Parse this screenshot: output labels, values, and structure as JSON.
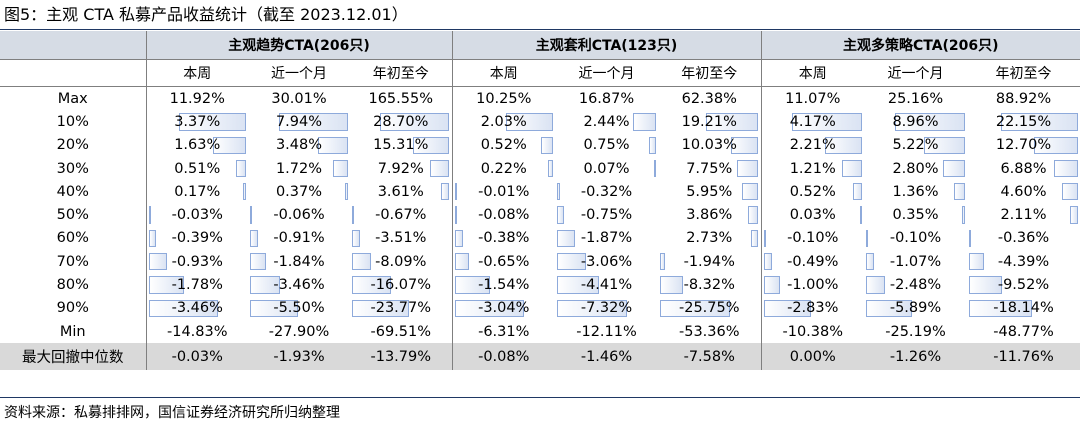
{
  "title": "图5：主观 CTA 私募产品收益统计（截至 2023.12.01）",
  "groups": [
    "主观趋势CTA(206只)",
    "主观套利CTA(123只)",
    "主观多策略CTA(206只)"
  ],
  "subcolumns": [
    "本周",
    "近一个月",
    "年初至今"
  ],
  "rows": [
    {
      "label": "Max",
      "values": [
        "11.92%",
        "30.01%",
        "165.55%",
        "10.25%",
        "16.87%",
        "62.38%",
        "11.07%",
        "25.16%",
        "88.92%"
      ],
      "bars": false
    },
    {
      "label": "10%",
      "values": [
        "3.37%",
        "7.94%",
        "28.70%",
        "2.03%",
        "2.44%",
        "19.21%",
        "4.17%",
        "8.96%",
        "22.15%"
      ],
      "bars": true
    },
    {
      "label": "20%",
      "values": [
        "1.63%",
        "3.48%",
        "15.31%",
        "0.52%",
        "0.75%",
        "10.03%",
        "2.21%",
        "5.22%",
        "12.70%"
      ],
      "bars": true
    },
    {
      "label": "30%",
      "values": [
        "0.51%",
        "1.72%",
        "7.92%",
        "0.22%",
        "0.07%",
        "7.75%",
        "1.21%",
        "2.80%",
        "6.88%"
      ],
      "bars": true
    },
    {
      "label": "40%",
      "values": [
        "0.17%",
        "0.37%",
        "3.61%",
        "-0.01%",
        "-0.32%",
        "5.95%",
        "0.52%",
        "1.36%",
        "4.60%"
      ],
      "bars": true
    },
    {
      "label": "50%",
      "values": [
        "-0.03%",
        "-0.06%",
        "-0.67%",
        "-0.08%",
        "-0.75%",
        "3.86%",
        "0.03%",
        "0.35%",
        "2.11%"
      ],
      "bars": true
    },
    {
      "label": "60%",
      "values": [
        "-0.39%",
        "-0.91%",
        "-3.51%",
        "-0.38%",
        "-1.87%",
        "2.73%",
        "-0.10%",
        "-0.10%",
        "-0.36%"
      ],
      "bars": true
    },
    {
      "label": "70%",
      "values": [
        "-0.93%",
        "-1.84%",
        "-8.09%",
        "-0.65%",
        "-3.06%",
        "-1.94%",
        "-0.49%",
        "-1.07%",
        "-4.39%"
      ],
      "bars": true
    },
    {
      "label": "80%",
      "values": [
        "-1.78%",
        "-3.46%",
        "-16.07%",
        "-1.54%",
        "-4.41%",
        "-8.32%",
        "-1.00%",
        "-2.48%",
        "-9.52%"
      ],
      "bars": true
    },
    {
      "label": "90%",
      "values": [
        "-3.46%",
        "-5.50%",
        "-23.77%",
        "-3.04%",
        "-7.32%",
        "-25.75%",
        "-2.83%",
        "-5.89%",
        "-18.14%"
      ],
      "bars": true
    },
    {
      "label": "Min",
      "values": [
        "-14.83%",
        "-27.90%",
        "-69.51%",
        "-6.31%",
        "-12.11%",
        "-53.36%",
        "-10.38%",
        "-25.19%",
        "-48.77%"
      ],
      "bars": false
    }
  ],
  "summary": {
    "label": "最大回撤中位数",
    "values": [
      "-0.03%",
      "-1.93%",
      "-13.79%",
      "-0.08%",
      "-1.46%",
      "-7.58%",
      "0.00%",
      "-1.26%",
      "-11.76%"
    ]
  },
  "source": "资料来源：私募排排网，国信证券经济研究所归纳整理",
  "colors": {
    "header_bg": "#d6dce5",
    "summary_bg": "#d9d9d9",
    "bar_border": "#8eaadb",
    "bar_fill": "#dae3f3",
    "rule": "#1f3864"
  }
}
